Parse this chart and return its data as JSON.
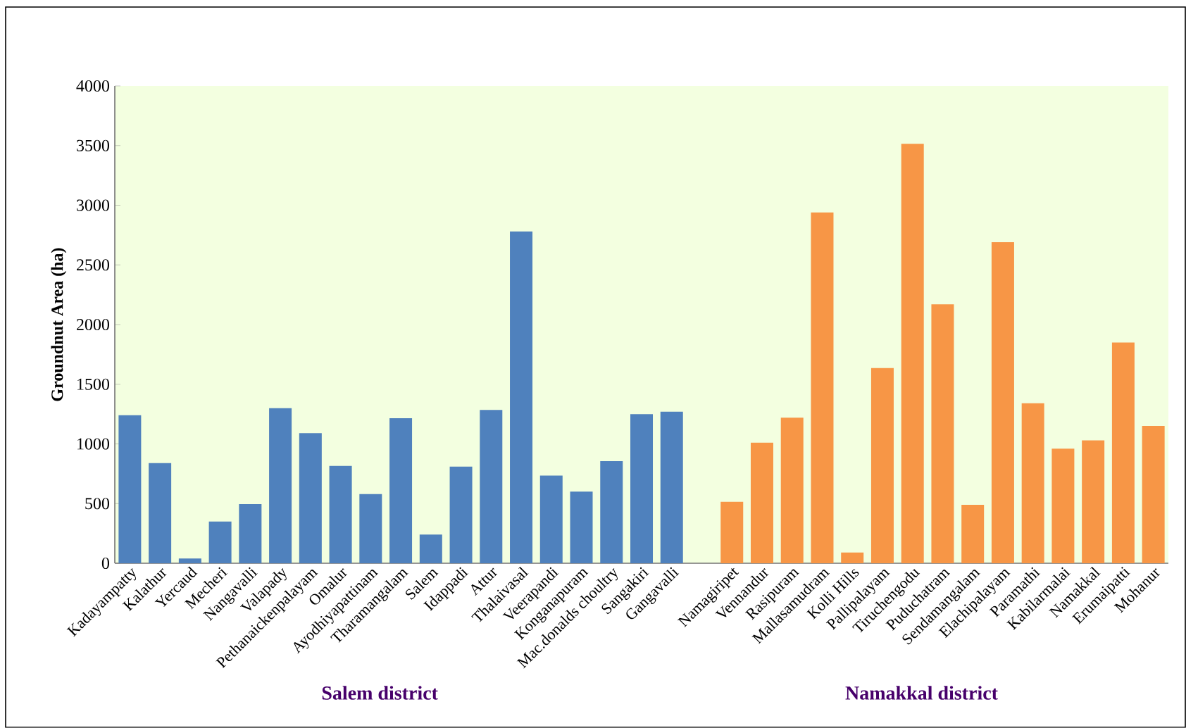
{
  "chart_data": {
    "type": "bar",
    "ylabel": "Groundnut Area (ha)",
    "categories": [
      "Kadayampatty",
      "Kalathur",
      "Yercaud",
      "Mecheri",
      "Nangavalli",
      "Valapady",
      "Pethanaickenpalayam",
      "Omalur",
      "Ayodhiyapattinam",
      "Tharamangalam",
      "Salem",
      "Idappadi",
      "Attur",
      "Thalaivasal",
      "Veerapandi",
      "Konganapuram",
      "Mac.donalds choultry",
      "Sangakiri",
      "Gangavalli",
      null,
      "Namagiripet",
      "Vennandur",
      "Rasipuram",
      "Mallasamudram",
      "Kolli Hills",
      "Pallipalayam",
      "Tiruchengodu",
      "Puduchatram",
      "Sendamangalam",
      "Elachipalayam",
      "Paramathi",
      "Kabilarmalai",
      "Namakkal",
      "Erumaipatti",
      "Mohanur"
    ],
    "series": [
      {
        "color": "#4f81bd",
        "values": [
          1240,
          840,
          40,
          350,
          495,
          1300,
          1090,
          815,
          580,
          1215,
          240,
          810,
          1285,
          2780,
          735,
          600,
          855,
          1250,
          1270,
          null,
          null,
          null,
          null,
          null,
          null,
          null,
          null,
          null,
          null,
          null,
          null,
          null,
          null,
          null,
          null
        ]
      },
      {
        "color": "#f79646",
        "values": [
          null,
          null,
          null,
          null,
          null,
          null,
          null,
          null,
          null,
          null,
          null,
          null,
          null,
          null,
          null,
          null,
          null,
          null,
          null,
          null,
          515,
          1010,
          1220,
          2940,
          90,
          1635,
          3515,
          2170,
          490,
          2690,
          1340,
          960,
          1030,
          1850,
          1150
        ]
      }
    ],
    "annotations": [
      "Salem district",
      "Namakkal district"
    ],
    "ylim": [
      0,
      4000
    ],
    "yticks": [
      0,
      500,
      1000,
      1500,
      2000,
      2500,
      3000,
      3500,
      4000
    ]
  }
}
